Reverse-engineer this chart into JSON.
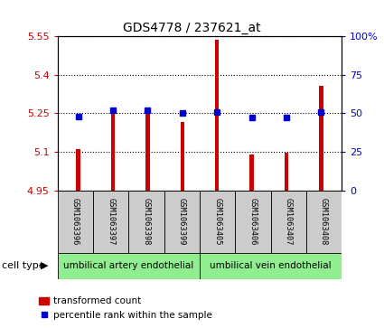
{
  "title": "GDS4778 / 237621_at",
  "samples": [
    "GSM1063396",
    "GSM1063397",
    "GSM1063398",
    "GSM1063399",
    "GSM1063405",
    "GSM1063406",
    "GSM1063407",
    "GSM1063408"
  ],
  "transformed_count": [
    5.11,
    5.255,
    5.255,
    5.215,
    5.535,
    5.09,
    5.095,
    5.355
  ],
  "percentile_rank": [
    48,
    52,
    52,
    50,
    51,
    47,
    47,
    51
  ],
  "ylim_left": [
    4.95,
    5.55
  ],
  "yticks_left": [
    4.95,
    5.1,
    5.25,
    5.4,
    5.55
  ],
  "ytick_labels_left": [
    "4.95",
    "5.1",
    "5.25",
    "5.4",
    "5.55"
  ],
  "ylim_right": [
    0,
    100
  ],
  "yticks_right": [
    0,
    25,
    50,
    75,
    100
  ],
  "ytick_labels_right": [
    "0",
    "25",
    "50",
    "75",
    "100%"
  ],
  "bar_color": "#cc0000",
  "dot_color": "#0000cc",
  "bar_bottom": 4.95,
  "bar_width": 0.12,
  "group1_label": "umbilical artery endothelial",
  "group2_label": "umbilical vein endothelial",
  "cell_type_label": "cell type",
  "legend1_label": "transformed count",
  "legend2_label": "percentile rank within the sample",
  "background_color": "#ffffff",
  "plot_bg_color": "#ffffff",
  "label_area_color": "#cccccc",
  "group_box_color": "#90ee90",
  "left_tick_color": "#cc0000",
  "right_tick_color": "#0000cc"
}
